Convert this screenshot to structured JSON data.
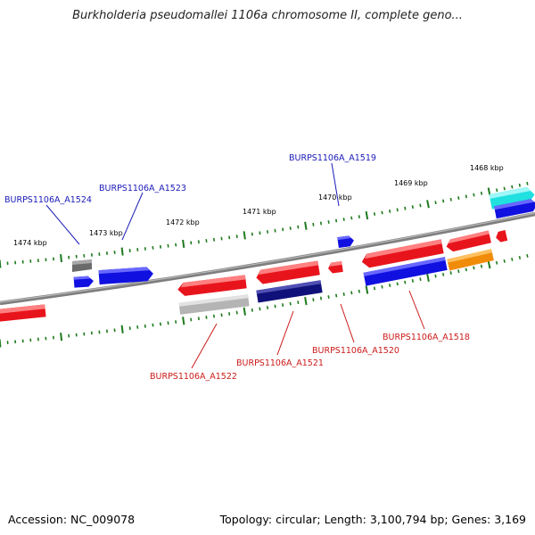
{
  "title": "Burkholderia pseudomallei 1106a chromosome II, complete geno...",
  "footer": {
    "accession": "Accession: NC_009078",
    "summary": "Topology: circular; Length: 3,100,794 bp; Genes: 3,169"
  },
  "colors": {
    "red": "#e8141c",
    "blue": "#1010e0",
    "navy": "#10107a",
    "gray": "#6a6a6a",
    "lightgray": "#b4b4b4",
    "cyan": "#20e0e0",
    "orange": "#f08c0a",
    "tick": "#1e7a1e",
    "backbone": "#7e7e7e",
    "label_blue": "#1a1ab8",
    "label_red": "#cc1a1a"
  },
  "kbp_labels": [
    "1474 kbp",
    "1473 kbp",
    "1472 kbp",
    "1471 kbp",
    "1470 kbp",
    "1469 kbp",
    "1468 kbp"
  ],
  "gene_labels": {
    "a1524": "BURPS1106A_A1524",
    "a1523": "BURPS1106A_A1523",
    "a1519": "BURPS1106A_A1519",
    "a1522": "BURPS1106A_A1522",
    "a1521": "BURPS1106A_A1521",
    "a1520": "BURPS1106A_A1520",
    "a1518": "BURPS1106A_A1518"
  }
}
